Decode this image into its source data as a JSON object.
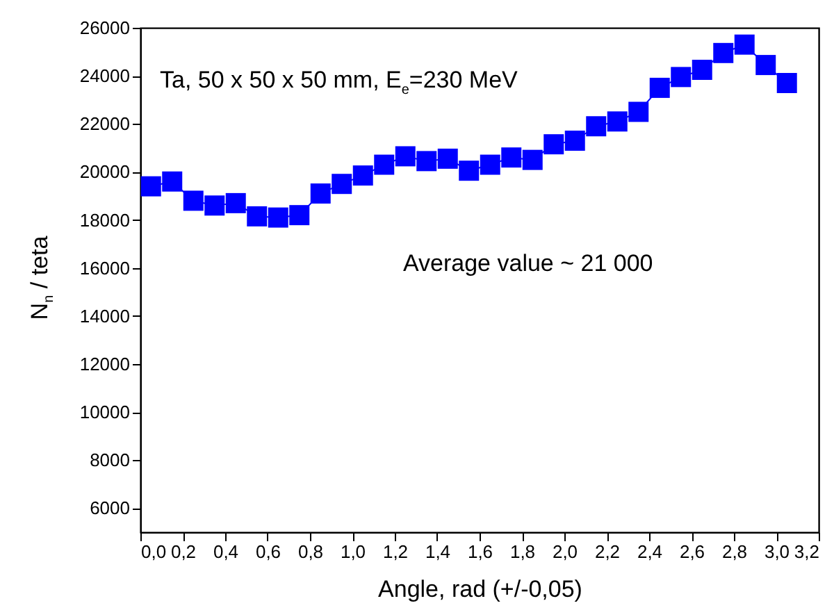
{
  "chart_data": {
    "type": "line",
    "xlabel": "Angle, rad (+/-0,05)",
    "ylabel": "N$_{n}$ / teta",
    "annotations": [
      "Ta, 50 x 50 x 50 mm, E$_{e}$=230 MeV",
      "Average value ~ 21 000"
    ],
    "x": [
      0.05,
      0.15,
      0.25,
      0.35,
      0.45,
      0.55,
      0.65,
      0.75,
      0.85,
      0.95,
      1.05,
      1.15,
      1.25,
      1.35,
      1.45,
      1.55,
      1.65,
      1.75,
      1.85,
      1.95,
      2.05,
      2.15,
      2.25,
      2.35,
      2.45,
      2.55,
      2.65,
      2.75,
      2.85,
      2.95,
      3.05
    ],
    "series": [
      {
        "color": "#0000ff",
        "values": [
          19400,
          19600,
          18800,
          18600,
          18700,
          18150,
          18100,
          18200,
          19100,
          19500,
          19850,
          20300,
          20650,
          20450,
          20550,
          20050,
          20300,
          20600,
          20500,
          21150,
          21300,
          21900,
          22100,
          22500,
          23500,
          23950,
          24250,
          24950,
          25300,
          24450,
          23700
        ]
      }
    ],
    "marker": "square",
    "line_style": "solid",
    "grid": false,
    "xlim": [
      0,
      3.2
    ],
    "ylim": [
      5000,
      26000
    ],
    "xticks": [
      {
        "value": 0,
        "label": "0,0"
      },
      {
        "value": 0.2,
        "label": "0,2"
      },
      {
        "value": 0.4,
        "label": "0,4"
      },
      {
        "value": 0.6,
        "label": "0,6"
      },
      {
        "value": 0.8,
        "label": "0,8"
      },
      {
        "value": 1,
        "label": "1,0"
      },
      {
        "value": 1.2,
        "label": "1,2"
      },
      {
        "value": 1.4,
        "label": "1,4"
      },
      {
        "value": 1.6,
        "label": "1,6"
      },
      {
        "value": 1.8,
        "label": "1,8"
      },
      {
        "value": 2,
        "label": "2,0"
      },
      {
        "value": 2.2,
        "label": "2,2"
      },
      {
        "value": 2.4,
        "label": "2,4"
      },
      {
        "value": 2.6,
        "label": "2,6"
      },
      {
        "value": 2.8,
        "label": "2,8"
      },
      {
        "value": 3,
        "label": "3,0"
      },
      {
        "value": 3.2,
        "label": "3,2"
      }
    ],
    "yticks": [
      6000,
      8000,
      10000,
      12000,
      14000,
      16000,
      18000,
      20000,
      22000,
      24000,
      26000
    ]
  }
}
